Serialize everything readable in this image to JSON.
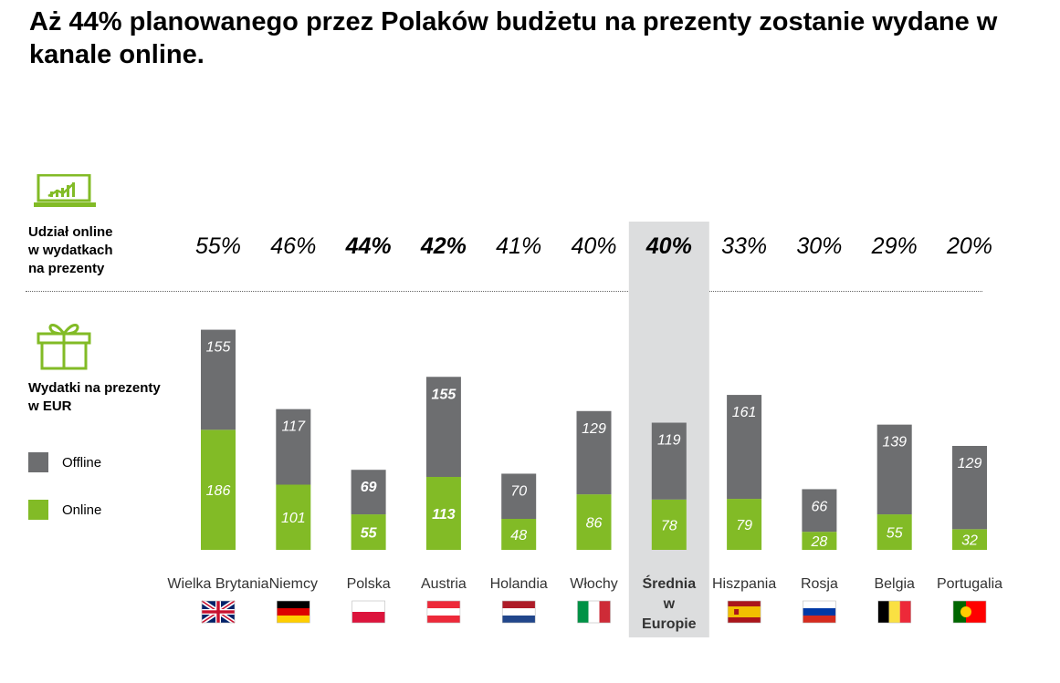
{
  "title": "Aż 44% planowanego przez Polaków budżetu na prezenty zostanie wydane w kanale online.",
  "online_share_label": [
    "Udział online",
    "w wydatkach",
    "na prezenty"
  ],
  "spend_label": [
    "Wydatki na prezenty",
    "w EUR"
  ],
  "icons": {
    "online": "laptop-chart-icon",
    "gifts": "gift-icon"
  },
  "colors": {
    "online": "#82BB26",
    "offline": "#6D6E70",
    "accent": "#82BB26",
    "highlight": "#DCDDDE"
  },
  "chart_data": {
    "type": "bar",
    "stacked": true,
    "categories": [
      "Wielka Brytania",
      "Niemcy",
      "Polska",
      "Austria",
      "Holandia",
      "Włochy",
      "Średnia w Europie",
      "Hiszpania",
      "Rosja",
      "Belgia",
      "Portugalia"
    ],
    "category_lines": [
      [
        "Wielka Brytania"
      ],
      [
        "Niemcy"
      ],
      [
        "Polska"
      ],
      [
        "Austria"
      ],
      [
        "Holandia"
      ],
      [
        "Włochy"
      ],
      [
        "Średnia",
        "w",
        "Europie"
      ],
      [
        "Hiszpania"
      ],
      [
        "Rosja"
      ],
      [
        "Belgia"
      ],
      [
        "Portugalia"
      ]
    ],
    "online_share": [
      "55%",
      "46%",
      "44%",
      "42%",
      "41%",
      "40%",
      "40%",
      "33%",
      "30%",
      "29%",
      "20%"
    ],
    "series": [
      {
        "name": "Online",
        "values": [
          186,
          101,
          55,
          113,
          48,
          86,
          78,
          79,
          28,
          55,
          32
        ]
      },
      {
        "name": "Offline",
        "values": [
          155,
          117,
          69,
          155,
          70,
          129,
          119,
          161,
          66,
          139,
          129
        ]
      }
    ],
    "emphasized": [
      "Polska",
      "Austria",
      "Średnia w Europie"
    ],
    "highlighted_category": "Średnia w Europie",
    "flags": [
      "uk-flag-icon",
      "germany-flag-icon",
      "poland-flag-icon",
      "austria-flag-icon",
      "netherlands-flag-icon",
      "italy-flag-icon",
      "",
      "spain-flag-icon",
      "russia-flag-icon",
      "belgium-flag-icon",
      "portugal-flag-icon"
    ],
    "ylabel": "",
    "xlabel": ""
  }
}
